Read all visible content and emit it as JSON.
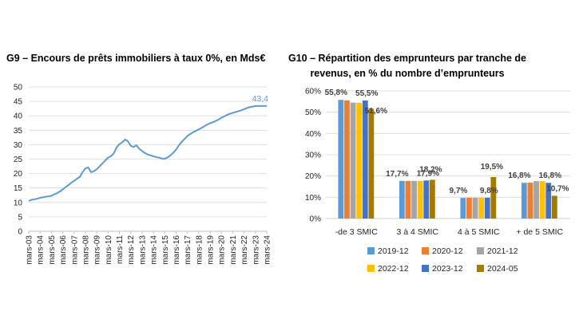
{
  "chart_data": [
    {
      "type": "line",
      "title": "G9 – Encours de prêts immobiliers à taux 0%, en Mds€",
      "xlabel": "",
      "ylabel": "",
      "ylim": [
        0,
        50
      ],
      "y_ticks": [
        "0",
        "5",
        "10",
        "15",
        "20",
        "25",
        "30",
        "35",
        "40",
        "45",
        "50"
      ],
      "categories": [
        "mars-03",
        "mars-04",
        "mars-05",
        "mars-06",
        "mars-07",
        "mars-08",
        "mars-09",
        "mars-10",
        "mars-11",
        "mars-12",
        "mars-13",
        "mars-14",
        "mars-15",
        "mars-16",
        "mars-17",
        "mars-18",
        "mars-19",
        "mars-20",
        "mars-21",
        "mars-22",
        "mars-23",
        "mars-24"
      ],
      "series": [
        {
          "color": "#5B9BD5",
          "x": [
            2003,
            2003.25,
            2003.5,
            2003.75,
            2004,
            2004.25,
            2004.5,
            2004.75,
            2005,
            2005.25,
            2005.5,
            2005.75,
            2006,
            2006.25,
            2006.5,
            2006.75,
            2007,
            2007.25,
            2007.5,
            2007.75,
            2008,
            2008.25,
            2008.5,
            2008.75,
            2009,
            2009.25,
            2009.5,
            2009.75,
            2010,
            2010.25,
            2010.5,
            2010.75,
            2011,
            2011.25,
            2011.5,
            2011.75,
            2012,
            2012.25,
            2012.5,
            2012.75,
            2013,
            2013.25,
            2013.5,
            2013.75,
            2014,
            2014.25,
            2014.5,
            2014.75,
            2015,
            2015.25,
            2015.5,
            2015.75,
            2016,
            2016.25,
            2016.5,
            2016.75,
            2017,
            2017.25,
            2017.5,
            2017.75,
            2018,
            2018.25,
            2018.5,
            2018.75,
            2019,
            2019.25,
            2019.5,
            2019.75,
            2020,
            2020.25,
            2020.5,
            2020.75,
            2021,
            2021.25,
            2021.5,
            2021.75,
            2022,
            2022.25,
            2022.5,
            2022.75,
            2023,
            2023.25,
            2023.5,
            2023.75,
            2024
          ],
          "values": [
            10.5,
            10.9,
            11.1,
            11.3,
            11.6,
            11.8,
            12.0,
            12.1,
            12.3,
            12.8,
            13.2,
            13.8,
            14.5,
            15.3,
            16.0,
            16.8,
            17.5,
            18.2,
            18.8,
            20.5,
            21.8,
            22.1,
            20.5,
            20.8,
            21.5,
            22.5,
            23.5,
            24.5,
            25.5,
            26.0,
            27.0,
            29.0,
            30.2,
            30.8,
            31.8,
            31.2,
            29.6,
            29.2,
            29.8,
            28.6,
            27.8,
            27.1,
            26.6,
            26.3,
            26.0,
            25.7,
            25.5,
            25.2,
            25.1,
            25.6,
            26.3,
            27.2,
            28.3,
            29.8,
            31.0,
            32.0,
            33.0,
            33.7,
            34.3,
            34.8,
            35.3,
            35.8,
            36.4,
            37.0,
            37.4,
            37.8,
            38.2,
            38.7,
            39.3,
            39.8,
            40.3,
            40.7,
            41.0,
            41.3,
            41.6,
            41.9,
            42.3,
            42.7,
            43.0,
            43.2,
            43.4,
            43.4,
            43.4,
            43.4,
            43.4
          ]
        }
      ],
      "annotations": [
        "43,4"
      ]
    },
    {
      "type": "bar",
      "title": "G10 – Répartition des emprunteurs par tranche de revenus, en % du nombre d’emprunteurs",
      "title_lines": [
        "G10 – Répartition des emprunteurs par tranche de",
        "revenus, en % du nombre d’emprunteurs"
      ],
      "xlabel": "",
      "ylabel": "",
      "ylim": [
        0,
        60
      ],
      "y_ticks": [
        "0%",
        "10%",
        "20%",
        "30%",
        "40%",
        "50%",
        "60%"
      ],
      "categories": [
        "-de 3 SMIC",
        "3 à 4 SMIC",
        "4 à 5 SMIC",
        "+ de 5 SMIC"
      ],
      "series": [
        {
          "name": "2019-12",
          "color": "#5B9BD5",
          "values": [
            55.8,
            17.7,
            9.7,
            16.8
          ]
        },
        {
          "name": "2020-12",
          "color": "#ED7D31",
          "values": [
            55.5,
            17.7,
            9.8,
            16.9
          ]
        },
        {
          "name": "2021-12",
          "color": "#A5A5A5",
          "values": [
            54.5,
            17.7,
            9.8,
            17.6
          ]
        },
        {
          "name": "2022-12",
          "color": "#FFC000",
          "values": [
            54.4,
            17.7,
            9.8,
            17.6
          ]
        },
        {
          "name": "2023-12",
          "color": "#4472C4",
          "values": [
            55.5,
            17.9,
            9.8,
            16.8
          ]
        },
        {
          "name": "2024-05",
          "color": "#A47A00",
          "values": [
            51.6,
            18.2,
            19.5,
            10.7
          ]
        }
      ],
      "data_labels": [
        {
          "category": 0,
          "series": 0,
          "text": "55,8%"
        },
        {
          "category": 0,
          "series": 4,
          "text": "55,5%"
        },
        {
          "category": 0,
          "series": 5,
          "text": "51,6%"
        },
        {
          "category": 1,
          "series": 0,
          "text": "17,7%"
        },
        {
          "category": 1,
          "series": 4,
          "text": "17,9%"
        },
        {
          "category": 1,
          "series": 5,
          "text": "18,2%"
        },
        {
          "category": 2,
          "series": 0,
          "text": "9,7%"
        },
        {
          "category": 2,
          "series": 4,
          "text": "9,8%"
        },
        {
          "category": 2,
          "series": 5,
          "text": "19,5%"
        },
        {
          "category": 3,
          "series": 0,
          "text": "16,8%"
        },
        {
          "category": 3,
          "series": 4,
          "text": "16,8%"
        },
        {
          "category": 3,
          "series": 5,
          "text": "10,7%"
        }
      ],
      "legend_position": "bottom"
    }
  ]
}
